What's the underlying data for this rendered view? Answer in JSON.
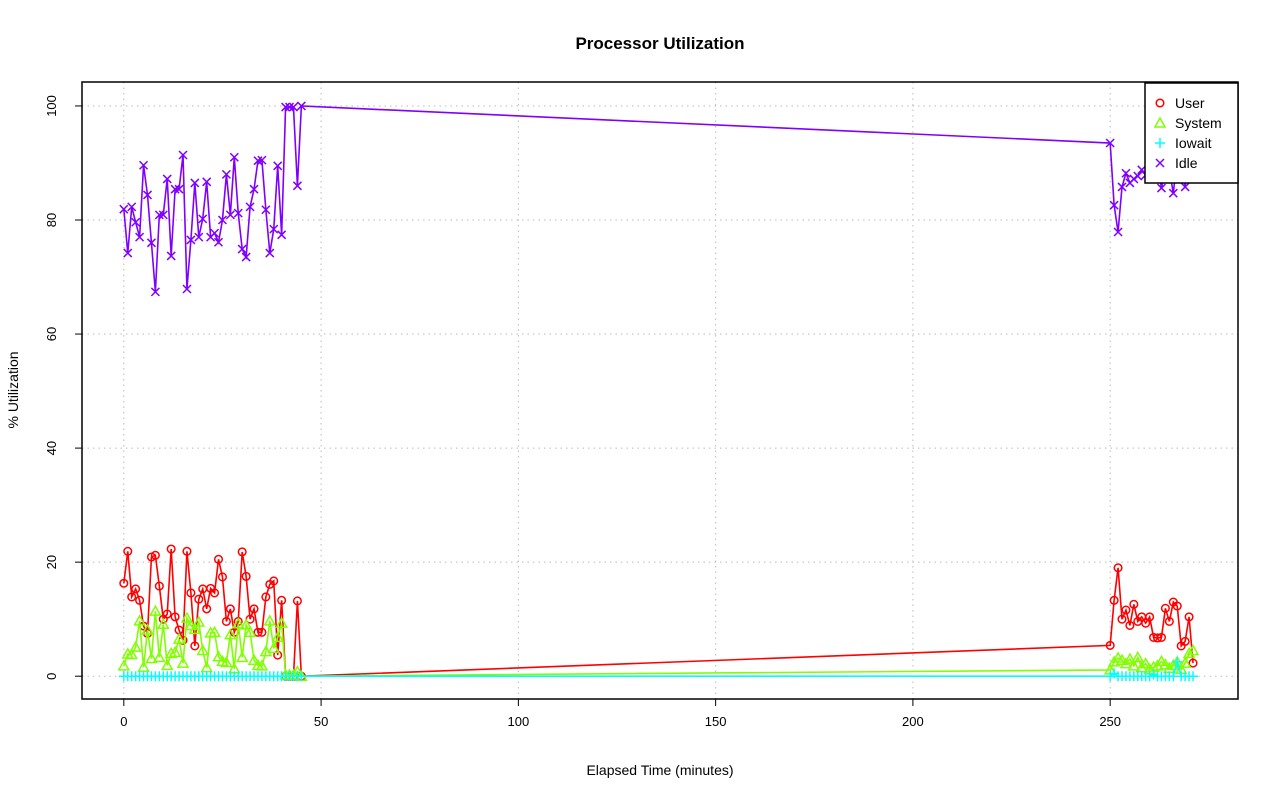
{
  "chart_data": {
    "type": "line",
    "title": "Processor Utilization",
    "xlabel": "Elapsed Time (minutes)",
    "ylabel": "% Utilization",
    "xlim": [
      -10.6,
      282.4
    ],
    "ylim": [
      -4,
      104.2
    ],
    "xticks": [
      0,
      50,
      100,
      150,
      200,
      250
    ],
    "yticks": [
      0,
      20,
      40,
      60,
      80,
      100
    ],
    "grid": true,
    "legend_position": "top-right",
    "x": [
      0,
      1,
      2,
      3,
      4,
      5,
      6,
      7,
      8,
      9,
      10,
      11,
      12,
      13,
      14,
      15,
      16,
      17,
      18,
      19,
      20,
      21,
      22,
      23,
      24,
      25,
      26,
      27,
      28,
      29,
      30,
      31,
      32,
      33,
      34,
      35,
      36,
      37,
      38,
      39,
      40,
      41,
      42,
      43,
      44,
      45,
      250,
      251,
      252,
      253,
      254,
      255,
      256,
      257,
      258,
      259,
      260,
      261,
      262,
      263,
      264,
      265,
      266,
      267,
      268,
      269,
      270,
      271
    ],
    "series": [
      {
        "name": "User",
        "color": "#ff0000",
        "marker": "circle",
        "values": [
          16.3,
          21.9,
          13.9,
          15.3,
          13.3,
          8.8,
          7.5,
          20.9,
          21.2,
          15.8,
          10,
          10.9,
          22.3,
          10.4,
          8.1,
          6.3,
          21.9,
          14.6,
          5.3,
          13.5,
          15.3,
          11.8,
          15.4,
          14.6,
          20.5,
          17.4,
          9.6,
          11.8,
          7.7,
          9.6,
          21.8,
          17.5,
          10,
          11.8,
          7.7,
          7.7,
          13.9,
          16.1,
          16.7,
          3.7,
          13.3,
          0,
          0,
          0,
          13.2,
          0,
          5.4,
          13.3,
          19,
          10,
          11.6,
          8.9,
          12.6,
          9.6,
          10.4,
          9.3,
          10.4,
          6.8,
          6.7,
          6.8,
          11.9,
          9.6,
          13,
          12.3,
          5.3,
          6.1,
          10.4,
          2.3
        ]
      },
      {
        "name": "System",
        "color": "#80ff00",
        "marker": "triangle",
        "values": [
          1.8,
          3.9,
          3.8,
          5.1,
          9.7,
          1.6,
          8.1,
          3.1,
          11.4,
          3.3,
          9.1,
          1.9,
          4,
          4.2,
          6.5,
          2.3,
          10.2,
          8.9,
          8.2,
          9.5,
          4.5,
          1.5,
          7.6,
          7.7,
          3.4,
          2.6,
          2.4,
          7.3,
          1.3,
          9.2,
          3.3,
          9,
          7.7,
          2.8,
          1.9,
          1.8,
          4.3,
          9.7,
          4.9,
          6.8,
          9.3,
          0.2,
          0.2,
          0.2,
          0.8,
          0,
          1.1,
          2.5,
          3.2,
          2.8,
          2.2,
          3,
          1.8,
          3.3,
          1.5,
          2.2,
          1.2,
          1.6,
          1.8,
          2.6,
          2,
          1.4,
          1.9,
          2.5,
          1.2,
          2.3,
          4,
          4.5
        ]
      },
      {
        "name": "Iowait",
        "color": "#00ffff",
        "marker": "plus",
        "values": [
          0,
          0,
          0,
          0,
          0,
          0,
          0,
          0,
          0,
          0,
          0,
          0,
          0,
          0,
          0,
          0,
          0,
          0,
          0,
          0,
          0,
          0,
          0,
          0,
          0,
          0,
          0,
          0,
          0,
          0,
          0,
          0,
          0,
          0,
          0,
          0,
          0,
          0,
          0,
          0,
          0,
          0,
          0,
          0,
          0,
          0,
          0,
          0.5,
          0,
          0,
          0,
          0,
          0,
          0,
          0,
          0,
          0,
          0.3,
          0,
          0,
          0,
          0,
          0,
          2.5,
          0,
          0,
          0,
          0
        ]
      },
      {
        "name": "Idle",
        "color": "#8000ff",
        "marker": "cross",
        "values": [
          81.9,
          74.2,
          82.3,
          79.6,
          77,
          89.6,
          84.4,
          76,
          67.4,
          80.9,
          80.9,
          87.2,
          73.7,
          85.4,
          85.4,
          91.4,
          67.9,
          76.5,
          86.5,
          77,
          80.2,
          86.7,
          77,
          77.7,
          76.1,
          80,
          88,
          80.9,
          91,
          81.2,
          74.9,
          73.5,
          82.3,
          85.4,
          90.4,
          90.5,
          81.8,
          74.2,
          78.4,
          89.5,
          77.4,
          99.8,
          99.8,
          99.8,
          86,
          100,
          93.5,
          82.6,
          77.9,
          85.8,
          88.2,
          86.5,
          87.2,
          87.7,
          88.8,
          87.9,
          91,
          91.8,
          90,
          85.6,
          89.5,
          88.8,
          84.7,
          90.9,
          92.5,
          85.8,
          97.4,
          97
        ]
      }
    ]
  }
}
